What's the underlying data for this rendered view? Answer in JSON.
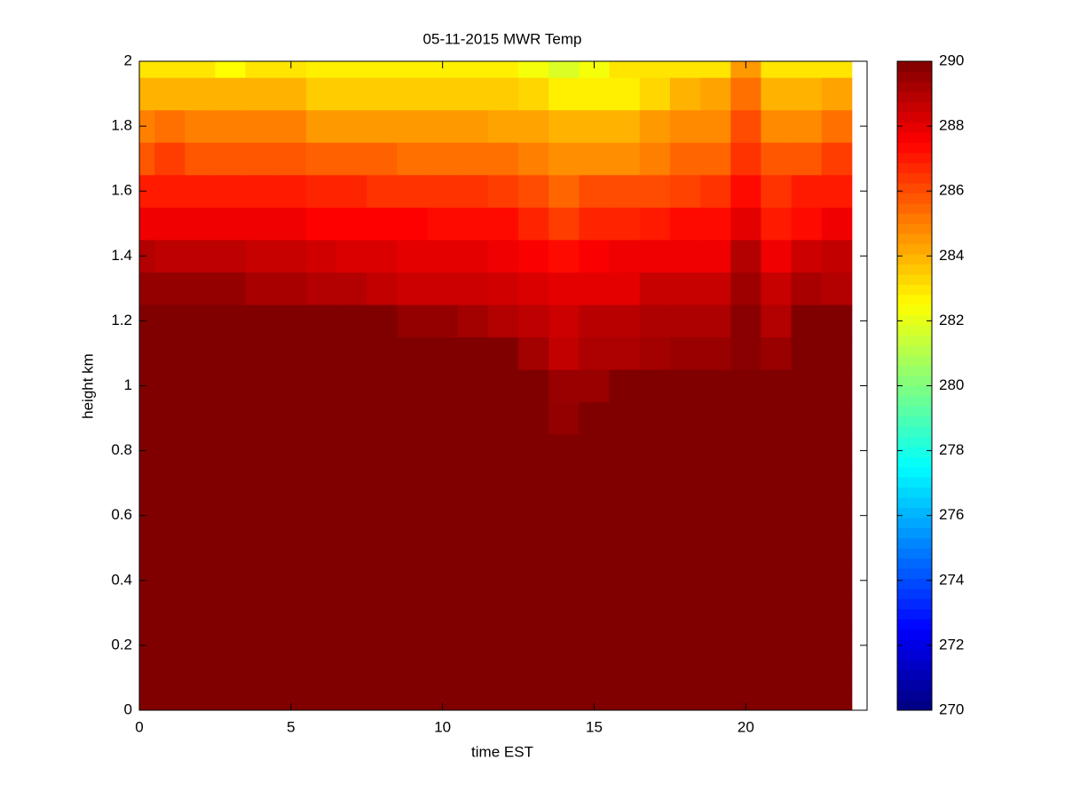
{
  "chart_data": {
    "type": "heatmap",
    "title": "05-11-2015 MWR Temp",
    "x_label": "time EST",
    "y_label": "height km",
    "colormap": "jet",
    "clim": [
      270,
      290
    ],
    "colorbar_ticks": [
      270,
      272,
      274,
      276,
      278,
      280,
      282,
      284,
      286,
      288,
      290
    ],
    "xlim": [
      0,
      24
    ],
    "xticks": [
      0,
      5,
      10,
      15,
      20
    ],
    "ylim": [
      0,
      2
    ],
    "yticks": [
      0,
      0.2,
      0.4,
      0.6,
      0.8,
      1,
      1.2,
      1.4,
      1.6,
      1.8,
      2
    ],
    "x_edges": [
      0,
      0.5,
      1.5,
      2.5,
      3.5,
      4.5,
      5.5,
      6.5,
      7.5,
      8.5,
      9.5,
      10.5,
      11.5,
      12.5,
      13.5,
      14.5,
      15.5,
      16.5,
      17.5,
      18.5,
      19.5,
      20.5,
      21.5,
      22.5,
      23.5
    ],
    "y_edges": [
      0,
      0.05,
      0.15,
      0.25,
      0.35,
      0.45,
      0.55,
      0.65,
      0.75,
      0.85,
      0.95,
      1.05,
      1.15,
      1.25,
      1.35,
      1.45,
      1.55,
      1.65,
      1.75,
      1.85,
      1.95,
      2
    ],
    "z": [
      [
        290,
        290,
        290,
        290,
        290,
        290,
        290,
        290,
        290,
        290,
        290,
        290,
        290,
        290,
        290,
        290,
        290,
        290,
        290,
        290,
        290,
        290,
        290,
        290
      ],
      [
        290,
        290,
        290,
        290,
        290,
        290,
        290,
        290,
        290,
        290,
        290,
        290,
        290,
        290,
        290,
        290,
        290,
        290,
        290,
        290,
        290,
        290,
        290,
        290
      ],
      [
        290,
        290,
        290,
        290,
        290,
        290,
        290,
        290,
        290,
        290,
        290,
        290,
        290,
        290,
        290,
        290,
        290,
        290,
        290,
        290,
        290,
        290,
        290,
        290
      ],
      [
        290,
        290,
        290,
        290,
        290,
        290,
        290,
        290,
        290,
        290,
        290,
        290,
        290,
        290,
        290,
        290,
        290,
        290,
        290,
        290,
        290,
        290,
        290,
        290
      ],
      [
        290,
        290,
        290,
        290,
        290,
        290,
        290,
        290,
        290,
        290,
        290,
        290,
        290,
        290,
        290,
        290,
        290,
        290,
        290,
        290,
        290,
        290,
        290,
        290
      ],
      [
        290,
        290,
        290,
        290,
        290,
        290,
        290,
        290,
        290,
        290,
        290,
        290,
        290,
        290,
        290,
        290,
        290,
        290,
        290,
        290,
        290,
        290,
        290,
        290
      ],
      [
        290,
        290,
        290,
        290,
        290,
        290,
        290,
        290,
        290,
        290,
        290,
        290,
        290,
        290,
        290,
        290,
        290,
        290,
        290,
        290,
        290,
        290,
        290,
        290
      ],
      [
        290,
        290,
        290,
        290,
        290,
        290,
        290,
        290,
        290,
        290,
        290,
        290,
        290,
        290,
        290,
        290,
        290,
        290,
        290,
        290,
        290,
        290,
        290,
        290
      ],
      [
        290,
        290,
        290,
        290,
        290,
        290,
        290,
        290,
        290,
        290,
        290,
        290,
        290,
        290,
        290,
        290,
        290,
        290,
        290,
        290,
        290,
        290,
        290,
        290
      ],
      [
        290,
        290,
        290,
        290,
        290,
        290,
        290,
        290,
        290,
        290,
        290,
        290,
        290,
        290,
        289.6,
        290,
        290,
        290,
        290,
        290,
        290,
        290,
        290,
        290
      ],
      [
        290,
        290,
        290,
        290,
        290,
        290,
        290,
        290,
        290,
        290,
        290,
        290,
        290,
        290,
        289.5,
        289.5,
        290,
        290,
        290,
        290,
        290,
        290,
        290,
        290
      ],
      [
        290,
        290,
        290,
        290,
        290,
        290,
        290,
        290,
        290,
        290,
        290,
        290,
        290,
        289.3,
        288.7,
        289.1,
        289.1,
        289.3,
        289.5,
        289.5,
        289.8,
        289.5,
        290,
        290
      ],
      [
        290,
        290,
        290,
        290,
        290,
        290,
        290,
        290,
        290,
        289.6,
        289.6,
        289.3,
        289,
        288.8,
        288.5,
        288.9,
        288.9,
        289.1,
        289.1,
        289.1,
        289.8,
        289,
        290,
        290
      ],
      [
        289.6,
        289.6,
        289.6,
        289.6,
        289.2,
        289.2,
        289,
        289,
        288.7,
        288.5,
        288.5,
        288.5,
        288.4,
        288.2,
        288,
        288,
        288,
        288.6,
        288.6,
        288.6,
        289.4,
        288.6,
        289.2,
        289
      ],
      [
        289,
        288.8,
        288.8,
        288.8,
        288.6,
        288.6,
        288.4,
        288.2,
        288.2,
        288,
        288,
        288,
        287.8,
        287.6,
        287.3,
        287.6,
        287.8,
        287.8,
        287.8,
        287.8,
        289,
        287.8,
        288.5,
        288.7
      ],
      [
        287.8,
        287.8,
        287.8,
        287.8,
        287.8,
        287.8,
        287.5,
        287.5,
        287.5,
        287.5,
        287.3,
        287.3,
        287.3,
        286.8,
        286.3,
        286.8,
        286.8,
        287,
        287.3,
        287.3,
        288,
        287,
        287.3,
        287.8
      ],
      [
        287,
        287,
        287,
        287,
        287,
        287,
        286.8,
        286.8,
        286.5,
        286.5,
        286.5,
        286.5,
        286.3,
        286,
        285.5,
        286,
        286,
        286,
        286.2,
        286.5,
        287.3,
        286.5,
        287,
        287
      ],
      [
        285.8,
        286.3,
        285.8,
        285.8,
        285.8,
        285.8,
        285.6,
        285.6,
        285.6,
        285.3,
        285.3,
        285.3,
        285.3,
        285,
        284.7,
        284.7,
        284.7,
        285,
        285.5,
        285.5,
        286.5,
        285.8,
        285.8,
        286.3
      ],
      [
        285,
        285.3,
        285,
        285,
        285,
        285,
        284.5,
        284.5,
        284.5,
        284.5,
        284.5,
        284.5,
        284.3,
        284.3,
        284,
        284,
        284,
        284.5,
        284.8,
        284.8,
        286,
        284.8,
        284.8,
        285.3
      ],
      [
        284,
        284,
        284,
        284,
        284,
        284,
        283.5,
        283.5,
        283.5,
        283.5,
        283.5,
        283.5,
        283.5,
        283.3,
        282.8,
        282.8,
        282.8,
        283.3,
        284,
        284.3,
        285.3,
        284,
        284,
        284.3
      ],
      [
        283,
        283,
        283,
        282.5,
        283,
        283,
        282.8,
        282.8,
        282.8,
        282.8,
        282.8,
        282.8,
        282.8,
        282.3,
        281.8,
        282.3,
        283,
        283,
        283,
        283,
        284.5,
        283,
        283,
        283
      ]
    ]
  }
}
